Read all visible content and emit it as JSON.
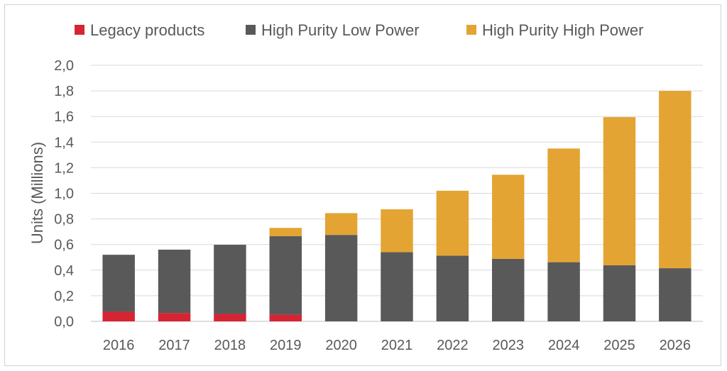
{
  "chart_data": {
    "type": "bar",
    "stacked": true,
    "categories": [
      "2016",
      "2017",
      "2018",
      "2019",
      "2020",
      "2021",
      "2022",
      "2023",
      "2024",
      "2025",
      "2026"
    ],
    "series": [
      {
        "name": "Legacy products",
        "color": "#d62433",
        "values": [
          0.075,
          0.065,
          0.058,
          0.052,
          0,
          0,
          0,
          0,
          0,
          0,
          0
        ]
      },
      {
        "name": "High Purity Low Power",
        "color": "#595959",
        "values": [
          0.445,
          0.495,
          0.54,
          0.613,
          0.675,
          0.54,
          0.513,
          0.488,
          0.462,
          0.438,
          0.415
        ]
      },
      {
        "name": "High Purity High Power",
        "color": "#e3a433",
        "values": [
          0,
          0,
          0,
          0.065,
          0.17,
          0.335,
          0.507,
          0.657,
          0.888,
          1.157,
          1.385
        ]
      }
    ],
    "ylabel": "Units (Millions)",
    "xlabel": "",
    "ylim": [
      0,
      2.0
    ],
    "yticks": [
      "0,0",
      "0,2",
      "0,4",
      "0,6",
      "0,8",
      "1,0",
      "1,2",
      "1,4",
      "1,6",
      "1,8",
      "2,0"
    ],
    "grid": true,
    "legend_position": "top"
  }
}
